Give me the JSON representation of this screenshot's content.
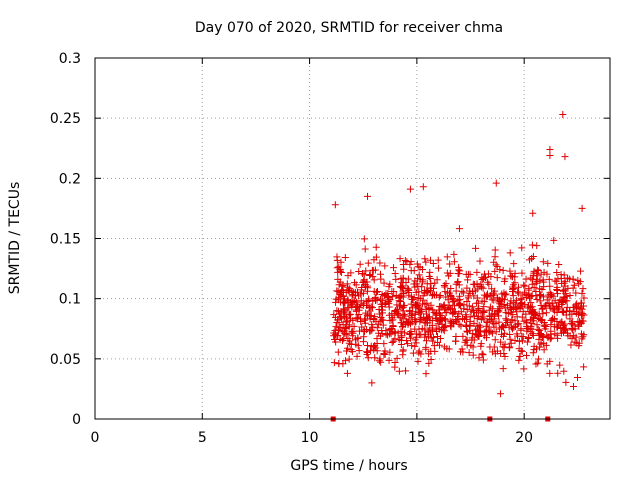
{
  "chart_data": {
    "type": "scatter",
    "title": "Day 070 of 2020, SRMTID for receiver chma",
    "xlabel": "GPS time / hours",
    "ylabel": "SRMTID / TECUs",
    "xlim": [
      0,
      24
    ],
    "ylim": [
      0,
      0.3
    ],
    "x_ticks": [
      0,
      5,
      10,
      15,
      20
    ],
    "x_tick_labels": [
      "0",
      "5",
      "10",
      "15",
      "20"
    ],
    "y_ticks": [
      0,
      0.05,
      0.1,
      0.15,
      0.2,
      0.25,
      0.3
    ],
    "y_tick_labels": [
      "0",
      "0.05",
      "0.1",
      "0.15",
      "0.2",
      "0.25",
      "0.3"
    ],
    "grid": true,
    "marker": "plus",
    "series_color": "#e00000",
    "zero_markers_x": [
      11.1,
      18.4,
      21.1
    ],
    "outliers": [
      {
        "x": 21.8,
        "y": 0.253
      },
      {
        "x": 21.2,
        "y": 0.224
      },
      {
        "x": 21.2,
        "y": 0.219
      },
      {
        "x": 21.9,
        "y": 0.218
      },
      {
        "x": 18.7,
        "y": 0.196
      },
      {
        "x": 15.3,
        "y": 0.193
      },
      {
        "x": 14.7,
        "y": 0.191
      },
      {
        "x": 12.7,
        "y": 0.185
      },
      {
        "x": 11.2,
        "y": 0.178
      },
      {
        "x": 20.4,
        "y": 0.171
      },
      {
        "x": 22.7,
        "y": 0.175
      },
      {
        "x": 18.9,
        "y": 0.021
      },
      {
        "x": 22.3,
        "y": 0.027
      },
      {
        "x": 12.9,
        "y": 0.03
      }
    ],
    "bulk": {
      "x_range": [
        11.1,
        22.8
      ],
      "y_mean": 0.09,
      "y_spread": 0.03,
      "y_range": [
        0.03,
        0.165
      ],
      "count": 1300
    }
  }
}
